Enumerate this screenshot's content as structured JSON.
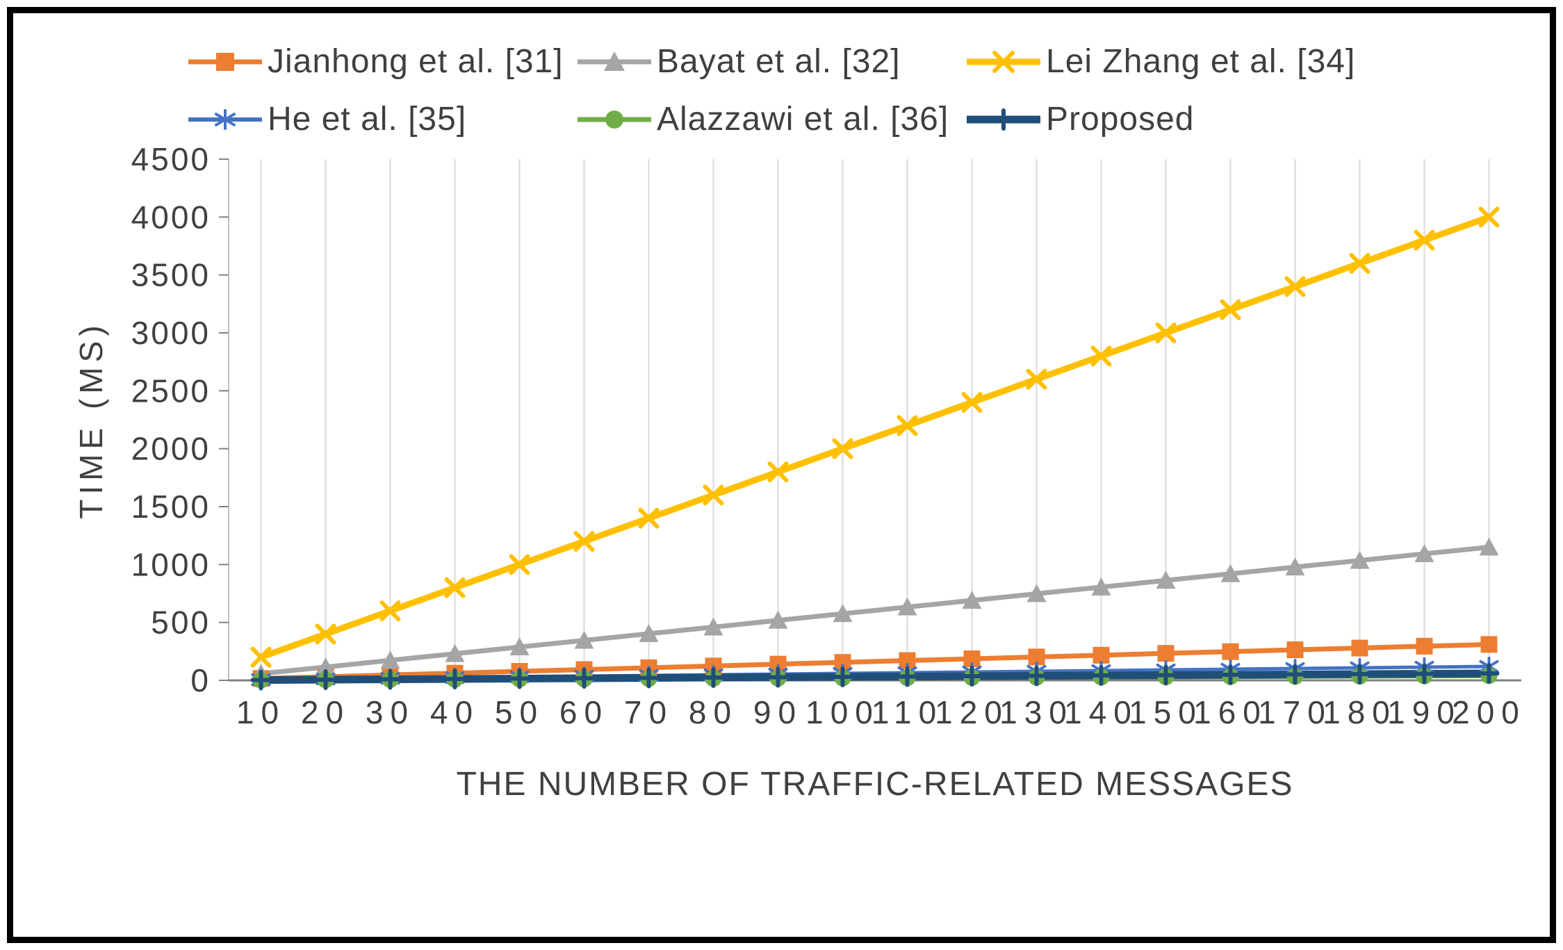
{
  "chart_data": {
    "type": "line",
    "title": "",
    "xlabel": "THE NUMBER OF TRAFFIC-RELATED MESSAGES",
    "ylabel": "TIME (MS)",
    "x": [
      10,
      20,
      30,
      40,
      50,
      60,
      70,
      80,
      90,
      100,
      110,
      120,
      130,
      140,
      150,
      160,
      170,
      180,
      190,
      200
    ],
    "ylim": [
      0,
      4500
    ],
    "ytick_step": 500,
    "grid": "vertical",
    "legend_position": "top",
    "series": [
      {
        "name": "Jianhong et al. [31]",
        "color": "#ED7D31",
        "marker": "square",
        "line_width": 7,
        "values": [
          16,
          31,
          47,
          62,
          78,
          93,
          109,
          124,
          140,
          155,
          171,
          186,
          202,
          217,
          233,
          248,
          264,
          279,
          295,
          310
        ]
      },
      {
        "name": "Bayat et al. [32]",
        "color": "#A5A5A5",
        "marker": "triangle",
        "line_width": 7,
        "values": [
          58,
          115,
          173,
          230,
          288,
          345,
          403,
          460,
          518,
          575,
          633,
          690,
          748,
          805,
          863,
          920,
          978,
          1035,
          1093,
          1150
        ]
      },
      {
        "name": "Lei Zhang et al. [34]",
        "color": "#FFC000",
        "marker": "x",
        "line_width": 9,
        "values": [
          200,
          400,
          600,
          800,
          1000,
          1200,
          1400,
          1600,
          1800,
          2000,
          2200,
          2400,
          2600,
          2800,
          3000,
          3200,
          3400,
          3600,
          3800,
          4000
        ]
      },
      {
        "name": "He et al. [35]",
        "color": "#4472C4",
        "marker": "asterisk",
        "line_width": 5,
        "values": [
          6,
          12,
          18,
          24,
          30,
          36,
          42,
          48,
          54,
          60,
          66,
          72,
          78,
          84,
          90,
          96,
          102,
          108,
          114,
          120
        ]
      },
      {
        "name": "Alazzawi et al. [36]",
        "color": "#70AD47",
        "marker": "circle",
        "line_width": 7,
        "values": [
          2,
          4,
          6,
          8,
          10,
          12,
          14,
          16,
          18,
          20,
          22,
          24,
          26,
          28,
          30,
          32,
          34,
          36,
          38,
          40
        ]
      },
      {
        "name": "Proposed",
        "color": "#1F4E79",
        "marker": "plus",
        "line_width": 11,
        "values": [
          3,
          6,
          9,
          12,
          15,
          18,
          21,
          24,
          27,
          30,
          33,
          36,
          39,
          42,
          45,
          48,
          51,
          54,
          57,
          60
        ]
      }
    ]
  }
}
